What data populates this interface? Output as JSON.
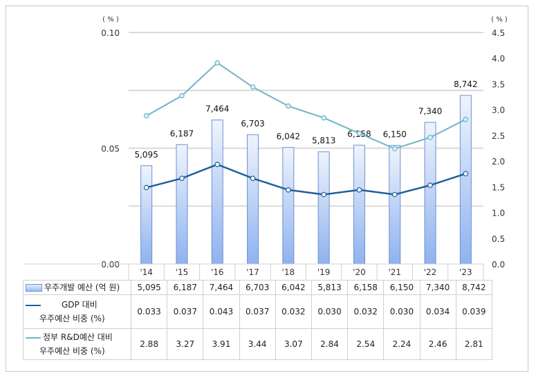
{
  "chart_data": {
    "type": "bar+line",
    "categories": [
      "'14",
      "'15",
      "'16",
      "'17",
      "'18",
      "'19",
      "'20",
      "'21",
      "'22",
      "'23"
    ],
    "series": [
      {
        "name": "우주개발 예산 (억 원)",
        "type": "bar",
        "axis": "hidden",
        "values": [
          5095,
          6187,
          7464,
          6703,
          6042,
          5813,
          6158,
          6150,
          7340,
          8742
        ],
        "labels": [
          "5,095",
          "6,187",
          "7,464",
          "6,703",
          "6,042",
          "5,813",
          "6,158",
          "6,150",
          "7,340",
          "8,742"
        ],
        "color": "#9dbcf0"
      },
      {
        "name_line1": "GDP 대비",
        "name_line2": "우주예산 비중 (%)",
        "type": "line",
        "axis": "left",
        "values": [
          0.033,
          0.037,
          0.043,
          0.037,
          0.032,
          0.03,
          0.032,
          0.03,
          0.034,
          0.039
        ],
        "labels": [
          "0.033",
          "0.037",
          "0.043",
          "0.037",
          "0.032",
          "0.030",
          "0.032",
          "0.030",
          "0.034",
          "0.039"
        ],
        "color": "#1f5f99"
      },
      {
        "name_line1": "정부 R&D예산 대비",
        "name_line2": "우주예산 비중 (%)",
        "type": "line",
        "axis": "right",
        "values": [
          2.88,
          3.27,
          3.91,
          3.44,
          3.07,
          2.84,
          2.54,
          2.24,
          2.46,
          2.81
        ],
        "labels": [
          "2.88",
          "3.27",
          "3.91",
          "3.44",
          "3.07",
          "2.84",
          "2.54",
          "2.24",
          "2.46",
          "2.81"
        ],
        "color": "#6fb4c8"
      }
    ],
    "left_axis": {
      "unit": "( % )",
      "range": [
        0,
        0.1
      ],
      "ticks": [
        "0.00",
        "0.05",
        "0.10"
      ]
    },
    "right_axis": {
      "unit": "( % )",
      "range": [
        0,
        4.5
      ],
      "ticks": [
        "0.0",
        "0.5",
        "1.0",
        "1.5",
        "2.0",
        "2.5",
        "3.0",
        "3.5",
        "4.0",
        "4.5"
      ]
    },
    "bar_axis_range": [
      0,
      12000
    ],
    "grid": true,
    "legend": "data-table"
  }
}
